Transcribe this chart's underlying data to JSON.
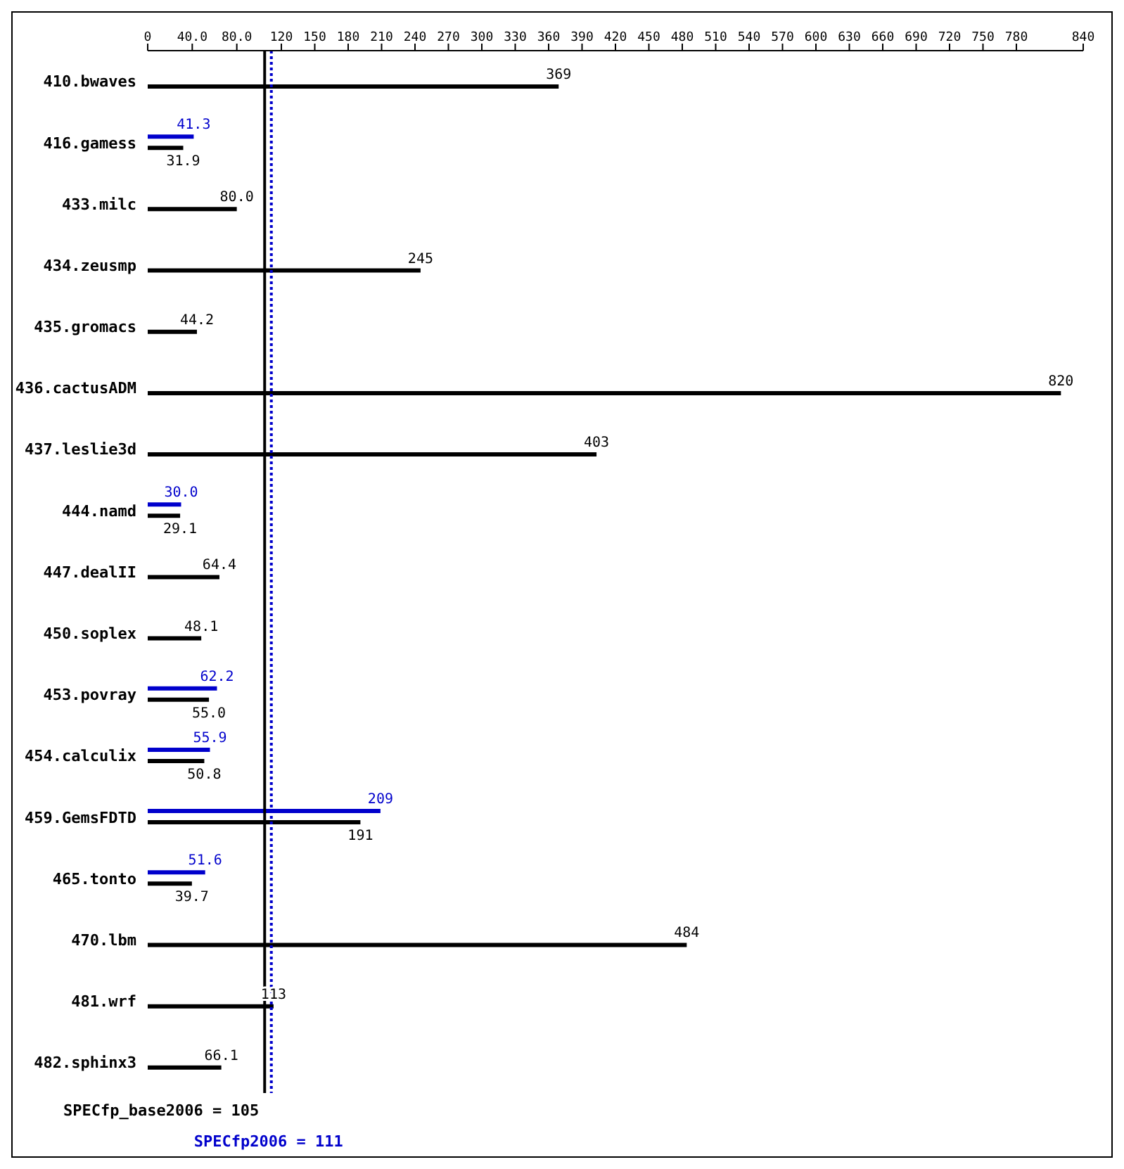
{
  "chart_data": {
    "type": "bar",
    "orientation": "horizontal",
    "categories": [
      "410.bwaves",
      "416.gamess",
      "433.milc",
      "434.zeusmp",
      "435.gromacs",
      "436.cactusADM",
      "437.leslie3d",
      "444.namd",
      "447.dealII",
      "450.soplex",
      "453.povray",
      "454.calculix",
      "459.GemsFDTD",
      "465.tonto",
      "470.lbm",
      "481.wrf",
      "482.sphinx3"
    ],
    "series": [
      {
        "color": "#000000",
        "values": [
          369,
          31.9,
          80.0,
          245,
          44.2,
          820,
          403,
          29.1,
          64.4,
          48.1,
          55.0,
          50.8,
          191,
          39.7,
          484,
          113,
          66.1
        ],
        "value_labels": [
          "369",
          "31.9",
          "80.0",
          "245",
          "44.2",
          "820",
          "403",
          "29.1",
          "64.4",
          "48.1",
          "55.0",
          "50.8",
          "191",
          "39.7",
          "484",
          "113",
          "66.1"
        ]
      },
      {
        "color": "#0000cc",
        "values": [
          null,
          41.3,
          null,
          null,
          null,
          null,
          null,
          30.0,
          null,
          null,
          62.2,
          55.9,
          209,
          51.6,
          null,
          null,
          null
        ],
        "value_labels": [
          null,
          "41.3",
          null,
          null,
          null,
          null,
          null,
          "30.0",
          null,
          null,
          "62.2",
          "55.9",
          "209",
          "51.6",
          null,
          null,
          null
        ]
      }
    ],
    "xlim": [
      0,
      840
    ],
    "xticks": [
      0,
      {
        "value": 40,
        "label": "40.0"
      },
      {
        "value": 80,
        "label": "80.0"
      },
      120,
      150,
      180,
      210,
      240,
      270,
      300,
      330,
      360,
      390,
      420,
      450,
      480,
      510,
      540,
      570,
      600,
      630,
      660,
      690,
      720,
      750,
      780,
      840
    ],
    "ref_lines": [
      {
        "axis": "x",
        "value": 105,
        "label": "SPECfp_base2006 = 105",
        "color": "#000000",
        "line_style": "solid"
      },
      {
        "axis": "x",
        "value": 111,
        "label": "SPECfp2006 = 111",
        "color": "#0000cc",
        "line_style": "dotted"
      }
    ],
    "grid": false,
    "legend": false
  }
}
